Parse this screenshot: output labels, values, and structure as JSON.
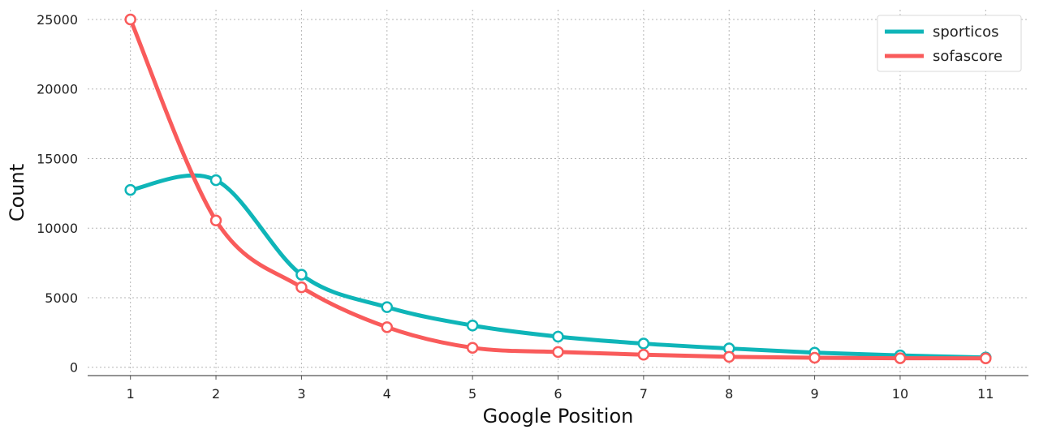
{
  "chart_data": {
    "type": "line",
    "title": "",
    "xlabel": "Google Position",
    "ylabel": "Count",
    "x": [
      1,
      2,
      3,
      4,
      5,
      6,
      7,
      8,
      9,
      10,
      11
    ],
    "xticks": [
      1,
      2,
      3,
      4,
      5,
      6,
      7,
      8,
      9,
      10,
      11
    ],
    "xlim": [
      0.5,
      11.5
    ],
    "ylim": [
      -600,
      25700
    ],
    "yticks": [
      0,
      5000,
      10000,
      15000,
      20000,
      25000
    ],
    "grid": true,
    "legend_position": "top-right",
    "smooth": true,
    "series": [
      {
        "name": "sporticos",
        "color": "#0fb5b8",
        "values": [
          12750,
          13450,
          6650,
          4320,
          3000,
          2200,
          1700,
          1350,
          1050,
          850,
          700
        ]
      },
      {
        "name": "sofascore",
        "color": "#f95b5b",
        "values": [
          25000,
          10550,
          5750,
          2880,
          1400,
          1100,
          900,
          750,
          680,
          650,
          640
        ]
      }
    ]
  }
}
